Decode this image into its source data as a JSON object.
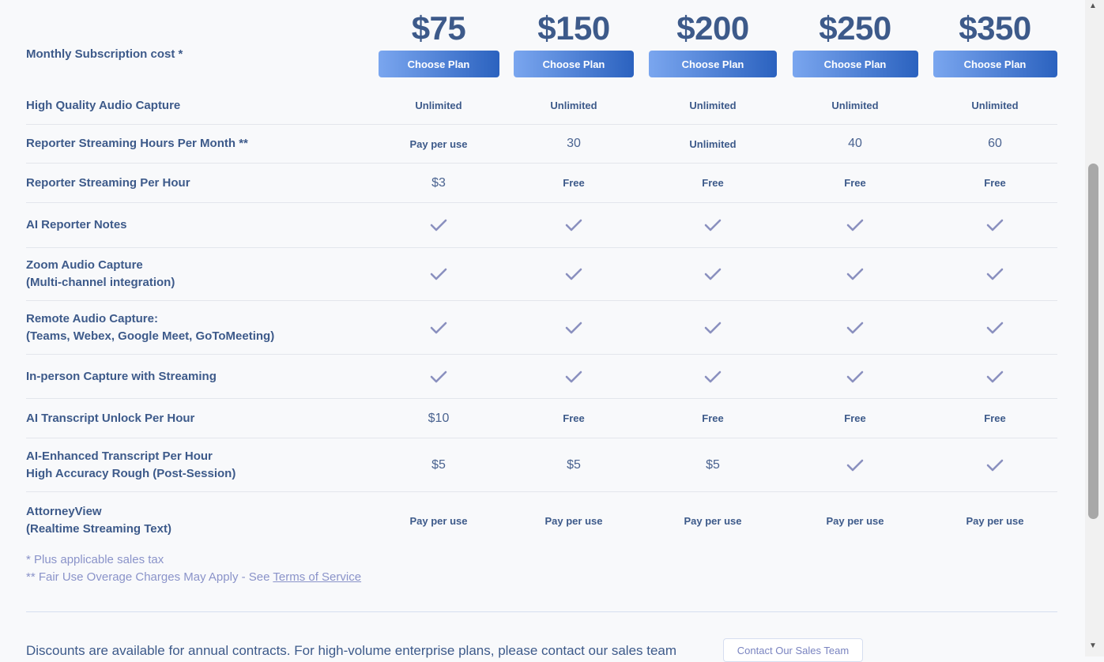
{
  "header": {
    "label": "Monthly Subscription cost *",
    "choose_label": "Choose Plan",
    "plans": [
      {
        "price": "$75"
      },
      {
        "price": "$150"
      },
      {
        "price": "$200"
      },
      {
        "price": "$250"
      },
      {
        "price": "$350"
      }
    ]
  },
  "rows": [
    {
      "label": "High Quality Audio Capture",
      "cells": [
        [
          "b",
          "Unlimited"
        ],
        [
          "b",
          "Unlimited"
        ],
        [
          "b",
          "Unlimited"
        ],
        [
          "b",
          "Unlimited"
        ],
        [
          "b",
          "Unlimited"
        ]
      ]
    },
    {
      "label": "Reporter Streaming Hours Per Month **",
      "cells": [
        [
          "b",
          "Pay per use"
        ],
        [
          "n",
          "30"
        ],
        [
          "b",
          "Unlimited"
        ],
        [
          "n",
          "40"
        ],
        [
          "n",
          "60"
        ]
      ]
    },
    {
      "label": "Reporter Streaming Per Hour",
      "cells": [
        [
          "n",
          "$3"
        ],
        [
          "b",
          "Free"
        ],
        [
          "b",
          "Free"
        ],
        [
          "b",
          "Free"
        ],
        [
          "b",
          "Free"
        ]
      ]
    },
    {
      "label": "AI Reporter Notes",
      "cells": [
        [
          "c",
          ""
        ],
        [
          "c",
          ""
        ],
        [
          "c",
          ""
        ],
        [
          "c",
          ""
        ],
        [
          "c",
          ""
        ]
      ]
    },
    {
      "label": "Zoom Audio Capture\n(Multi-channel integration)",
      "cells": [
        [
          "c",
          ""
        ],
        [
          "c",
          ""
        ],
        [
          "c",
          ""
        ],
        [
          "c",
          ""
        ],
        [
          "c",
          ""
        ]
      ]
    },
    {
      "label": "Remote Audio Capture:\n(Teams, Webex, Google Meet, GoToMeeting)",
      "cells": [
        [
          "c",
          ""
        ],
        [
          "c",
          ""
        ],
        [
          "c",
          ""
        ],
        [
          "c",
          ""
        ],
        [
          "c",
          ""
        ]
      ]
    },
    {
      "label": "In-person Capture with Streaming",
      "cells": [
        [
          "c",
          ""
        ],
        [
          "c",
          ""
        ],
        [
          "c",
          ""
        ],
        [
          "c",
          ""
        ],
        [
          "c",
          ""
        ]
      ]
    },
    {
      "label": "AI Transcript Unlock Per Hour",
      "cells": [
        [
          "n",
          "$10"
        ],
        [
          "b",
          "Free"
        ],
        [
          "b",
          "Free"
        ],
        [
          "b",
          "Free"
        ],
        [
          "b",
          "Free"
        ]
      ]
    },
    {
      "label": "AI-Enhanced Transcript Per Hour\nHigh Accuracy Rough (Post-Session)",
      "cells": [
        [
          "n",
          "$5"
        ],
        [
          "n",
          "$5"
        ],
        [
          "n",
          "$5"
        ],
        [
          "c",
          ""
        ],
        [
          "c",
          ""
        ]
      ]
    },
    {
      "label": "AttorneyView\n(Realtime Streaming Text)",
      "cells": [
        [
          "b",
          "Pay per use"
        ],
        [
          "b",
          "Pay per use"
        ],
        [
          "b",
          "Pay per use"
        ],
        [
          "b",
          "Pay per use"
        ],
        [
          "b",
          "Pay per use"
        ]
      ]
    }
  ],
  "notes": {
    "tax": "* Plus applicable sales tax",
    "fair_use": "** Fair Use Overage Charges May Apply - See ",
    "tos_link": "Terms of Service"
  },
  "footer": {
    "text": "Discounts are available for annual contracts. For high-volume enterprise plans, please contact our sales team",
    "contact_button": "Contact Our Sales Team"
  },
  "colors": {
    "check": "#8a90bf",
    "text": "#3d5a8a",
    "button_start": "#7aa6ef",
    "button_end": "#2b62bf"
  }
}
